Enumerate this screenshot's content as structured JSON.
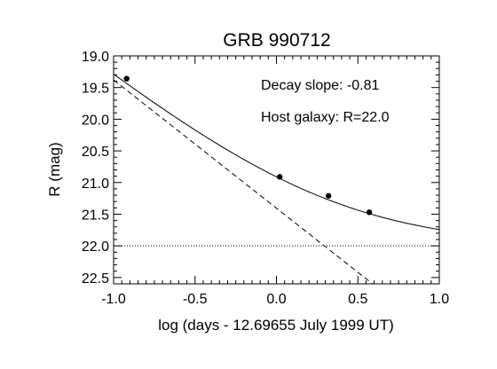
{
  "chart_data": {
    "type": "scatter",
    "title": "GRB 990712",
    "xlabel": "log (days - 12.69655 July 1999 UT)",
    "ylabel": "R (mag)",
    "xlim": [
      -1.0,
      1.0
    ],
    "ylim": [
      22.6,
      19.0
    ],
    "y_inverted": true,
    "xticks": [
      -1.0,
      -0.5,
      0.0,
      0.5,
      1.0
    ],
    "xtick_labels": [
      "-1.0",
      "-0.5",
      "0.0",
      "0.5",
      "1.0"
    ],
    "yticks": [
      19.0,
      19.5,
      20.0,
      20.5,
      21.0,
      21.5,
      22.0,
      22.5
    ],
    "ytick_labels": [
      "19.0",
      "19.5",
      "20.0",
      "20.5",
      "21.0",
      "21.5",
      "22.0",
      "22.5"
    ],
    "grid": false,
    "annotations": [
      "Decay slope: -0.81",
      "Host galaxy: R=22.0"
    ],
    "points": {
      "x": [
        -0.92,
        0.02,
        0.32,
        0.57
      ],
      "y": [
        19.36,
        20.91,
        21.21,
        21.47
      ]
    },
    "afterglow_line": {
      "style": "dashed",
      "slope": 2.025,
      "intercept": 21.405
    },
    "host_level": {
      "style": "dotted",
      "value": 22.0
    },
    "total_fit": {
      "style": "solid",
      "afterglow_decay_slope": -0.81,
      "host_mag": 22.0
    }
  }
}
